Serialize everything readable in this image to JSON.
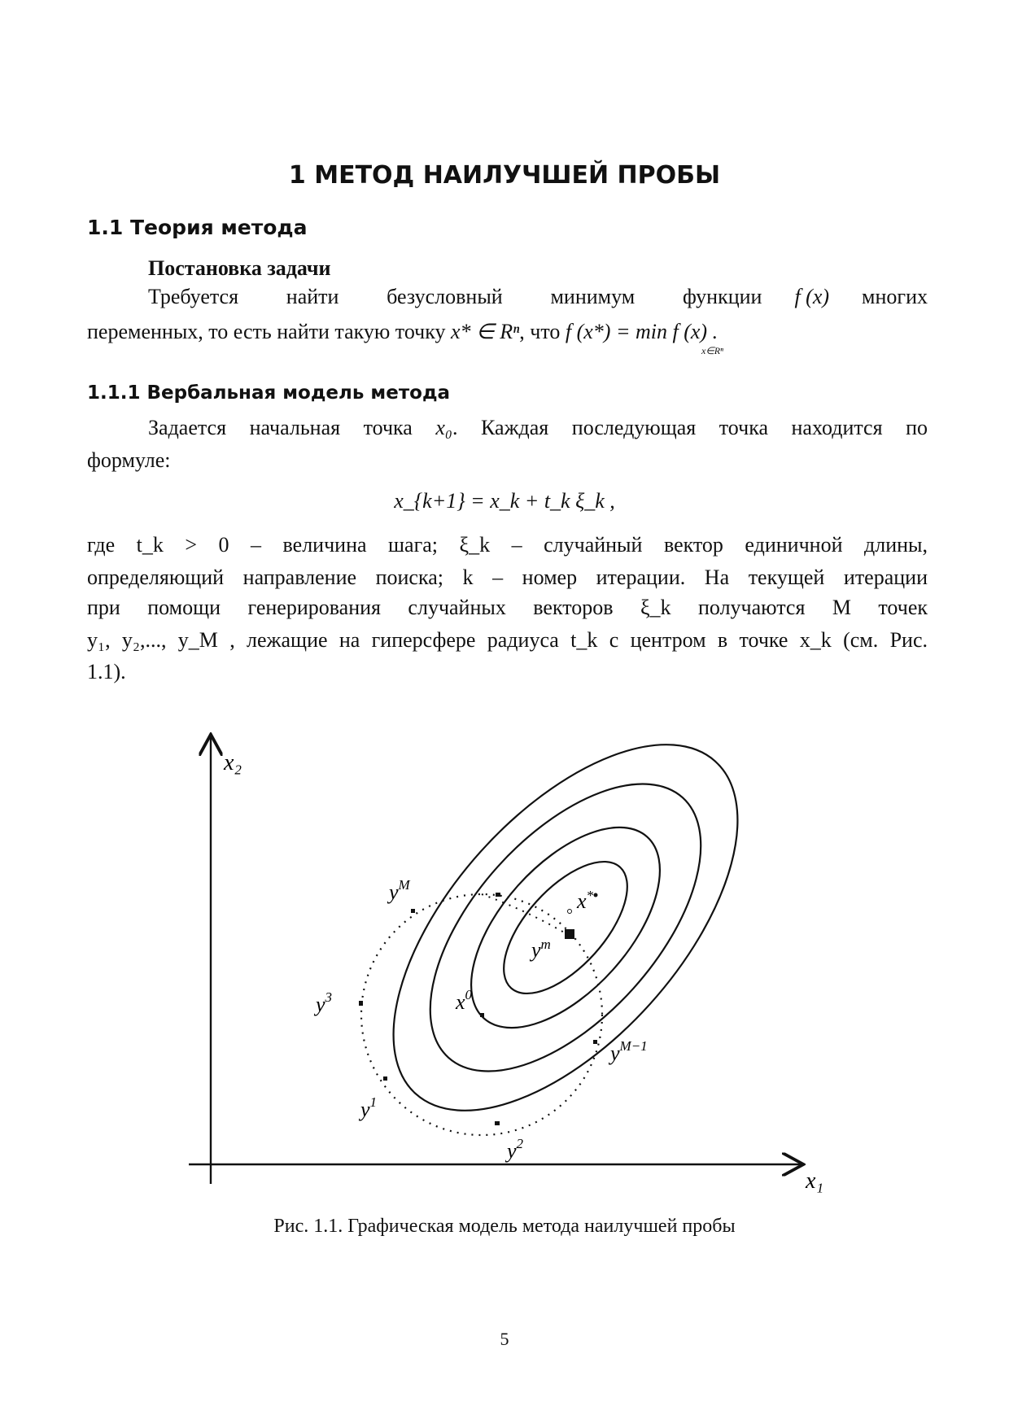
{
  "chapter_title": "1  МЕТОД НАИЛУЧШЕЙ ПРОБЫ",
  "section_title": "1.1  Теория метода",
  "problem": {
    "heading": "Постановка задачи",
    "line1": "Требуется найти безусловный минимум функции",
    "fx": "f (x)",
    "line1_end": "многих",
    "line2_a": "переменных, то есть найти такую точку",
    "xstar": "x* ∈ Rⁿ",
    "line2_b": ", что",
    "formula": "f (x*) = min f (x) .",
    "min_sub": "x∈Rⁿ"
  },
  "subsection_title": "1.1.1 Вербальная модель метода",
  "verbal": {
    "p1_a": "Задается начальная точка",
    "x0": "x₀",
    "p1_b": ". Каждая последующая точка находится по",
    "p1_c": "формуле:",
    "formula": "x_{k+1} = x_k + t_k ξ_k ,",
    "p2_l1": "где  t_k > 0  –  величина  шага;  ξ_k  –  случайный  вектор  единичной  длины,",
    "p2_l2": "определяющий направление поиска;  k  – номер итерации. На текущей итерации",
    "p2_l3": "при  помощи  генерирования  случайных  векторов  ξ_k  получаются  M  точек",
    "p2_l4": "y₁, y₂,..., y_M , лежащие на гиперсфере радиуса  t_k  с центром в точке  x_k  (см. Рис.",
    "p2_l5": "1.1)."
  },
  "figure": {
    "axis_x": "x₁",
    "axis_y": "x₂",
    "labels": {
      "yM": "y^M",
      "y3": "y^3",
      "y1": "y^1",
      "y2": "y^2",
      "yM1": "y^{M-1}",
      "ym": "y^m",
      "x0": "x^0",
      "xstar": "x*"
    },
    "caption": "Рис. 1.1. Графическая модель метода наилучшей пробы"
  },
  "page_number": "5"
}
